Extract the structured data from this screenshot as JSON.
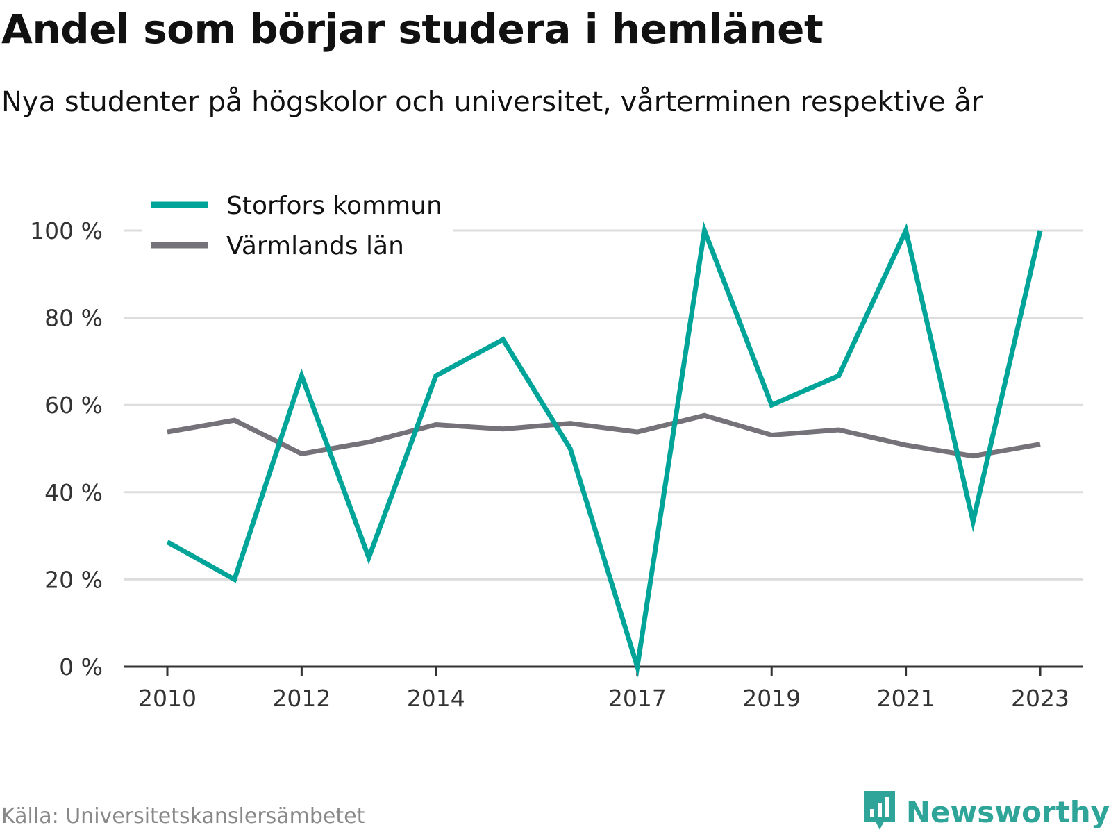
{
  "header": {
    "title": "Andel som börjar studera i hemlänet",
    "subtitle": "Nya studenter på högskolor och universitet, vårterminen respektive år"
  },
  "footer": {
    "source": "Källa: Universitetskanslersämbetet",
    "brand": "Newsworthy",
    "brand_icon": "bar-chart-speech-bubble-icon"
  },
  "colors": {
    "storfors": "#00a499",
    "varmland": "#757279",
    "grid": "#dddddd",
    "axis": "#333333",
    "tick_label": "#333333",
    "brand": "#2fa59a"
  },
  "chart_data": {
    "type": "line",
    "x": [
      2010,
      2011,
      2012,
      2013,
      2014,
      2015,
      2016,
      2017,
      2018,
      2019,
      2020,
      2021,
      2022,
      2023
    ],
    "x_tick_labels": [
      "2010",
      "2012",
      "2014",
      "2017",
      "2019",
      "2021",
      "2023"
    ],
    "y_tick_labels": [
      "0 %",
      "20 %",
      "40 %",
      "60 %",
      "80 %",
      "100 %"
    ],
    "ylim": [
      0,
      100
    ],
    "grid": true,
    "legend_position": "top-left",
    "series": [
      {
        "name": "Storfors kommun",
        "values": [
          28.6,
          20,
          66.7,
          25,
          66.7,
          75,
          50,
          0,
          100,
          60,
          66.7,
          100,
          33.3,
          100
        ]
      },
      {
        "name": "Värmlands län",
        "values": [
          53.8,
          56.5,
          48.8,
          51.5,
          55.5,
          54.5,
          55.8,
          53.8,
          57.6,
          53.1,
          54.3,
          50.8,
          48.3,
          51
        ]
      }
    ]
  }
}
